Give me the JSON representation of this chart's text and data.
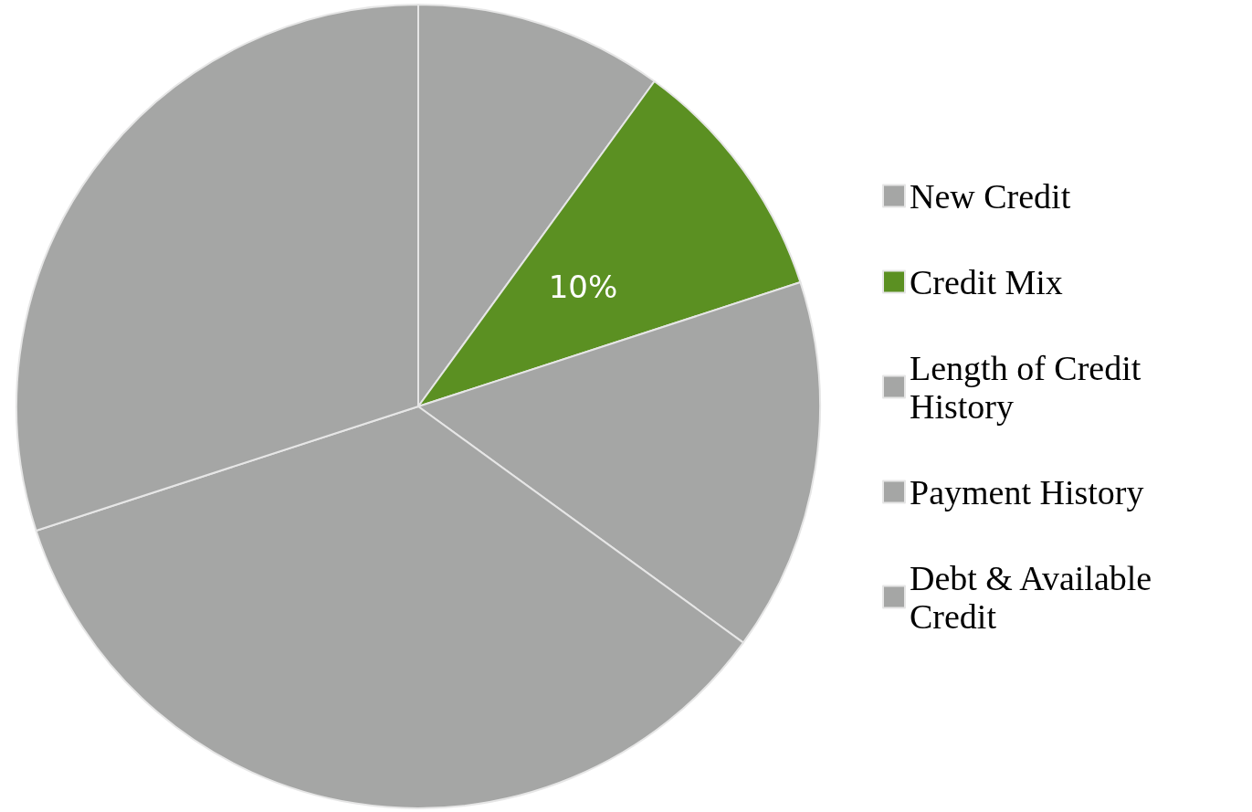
{
  "chart_data": {
    "type": "pie",
    "categories": [
      "New Credit",
      "Credit Mix",
      "Length of Credit History",
      "Payment History",
      "Debt & Available Credit"
    ],
    "values": [
      10,
      10,
      15,
      35,
      30
    ],
    "colors": [
      "#a5a6a5",
      "#5b9022",
      "#a5a6a5",
      "#a5a6a5",
      "#a5a6a5"
    ],
    "value_labels": [
      null,
      "10%",
      null,
      null,
      null
    ],
    "legend": "right"
  }
}
